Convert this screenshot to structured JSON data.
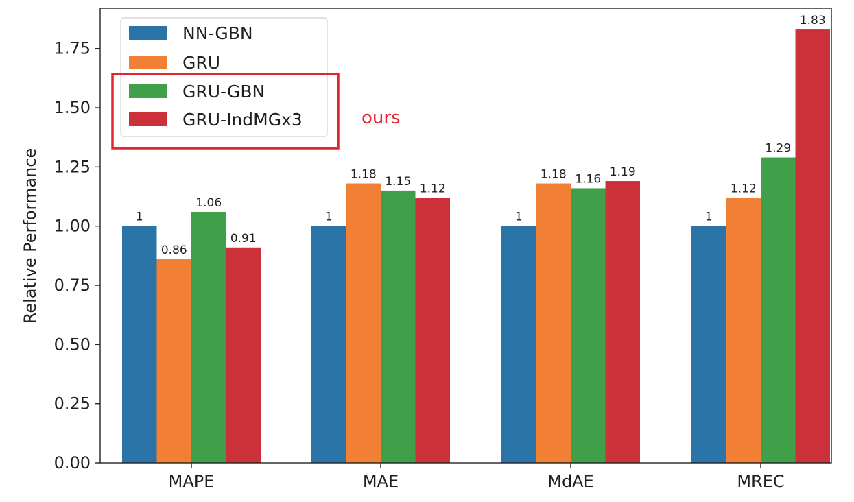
{
  "chart_data": {
    "type": "bar",
    "title": "",
    "xlabel": "",
    "ylabel": "Relative Performance",
    "categories": [
      "MAPE",
      "MAE",
      "MdAE",
      "MREC"
    ],
    "series": [
      {
        "name": "NN-GBN",
        "color": "#2b74a8",
        "values": [
          1,
          1,
          1,
          1
        ],
        "labels": [
          "1",
          "1",
          "1",
          "1"
        ]
      },
      {
        "name": "GRU",
        "color": "#f28034",
        "values": [
          0.86,
          1.18,
          1.18,
          1.12
        ],
        "labels": [
          "0.86",
          "1.18",
          "1.18",
          "1.12"
        ]
      },
      {
        "name": "GRU-GBN",
        "color": "#40a04a",
        "values": [
          1.06,
          1.15,
          1.16,
          1.29
        ],
        "labels": [
          "1.06",
          "1.15",
          "1.16",
          "1.29"
        ]
      },
      {
        "name": "GRU-IndMGx3",
        "color": "#cc3039",
        "values": [
          0.91,
          1.12,
          1.19,
          1.83
        ],
        "labels": [
          "0.91",
          "1.12",
          "1.19",
          "1.83"
        ]
      }
    ],
    "ylim": [
      0,
      1.92
    ],
    "yticks": [
      0,
      0.25,
      0.5,
      0.75,
      1.0,
      1.25,
      1.5,
      1.75
    ],
    "ytick_labels": [
      "0.00",
      "0.25",
      "0.50",
      "0.75",
      "1.00",
      "1.25",
      "1.50",
      "1.75"
    ],
    "legend": {
      "placement": "top-left",
      "highlight_color": "#e3262d"
    },
    "annotation": {
      "text": "ours",
      "color": "#e3262d"
    },
    "grid": false
  }
}
